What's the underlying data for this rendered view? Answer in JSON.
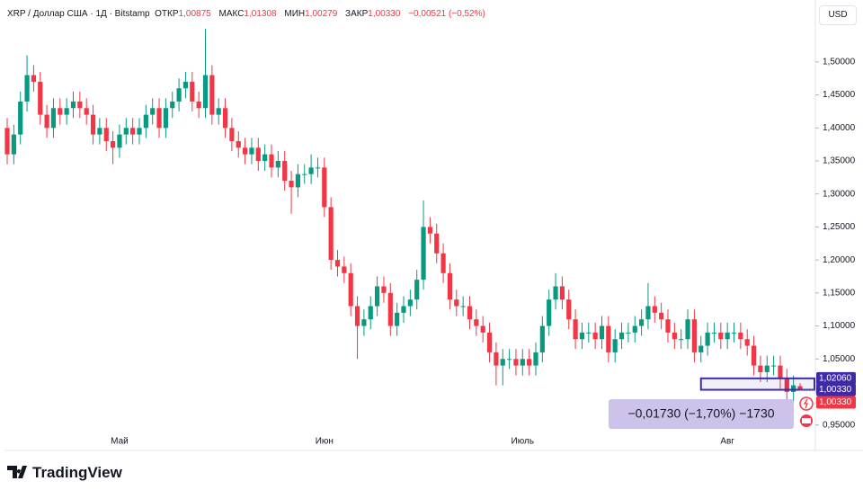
{
  "chart_data": {
    "type": "candlestick",
    "header": {
      "symbol": "XRP / Доллар США · 1Д · Bitstamp",
      "open_label": "ОТКР",
      "open": "1,00875",
      "high_label": "МАКС",
      "high": "1,01308",
      "low_label": "МИН",
      "low": "1,00279",
      "close_label": "ЗАКР",
      "close": "1,00330",
      "change": "−0,00521 (−0,52%)"
    },
    "currency": "USD",
    "brand": "TradingView",
    "up_color": "#089981",
    "down_color": "#f23645",
    "categories": [
      null,
      null,
      null,
      null,
      null,
      null,
      null,
      null,
      null,
      null,
      null,
      null,
      null,
      null,
      null,
      null,
      null,
      "Май",
      null,
      null,
      null,
      null,
      null,
      null,
      null,
      null,
      null,
      null,
      null,
      null,
      null,
      null,
      null,
      null,
      null,
      null,
      null,
      null,
      null,
      null,
      null,
      null,
      null,
      null,
      null,
      null,
      null,
      null,
      "Июн",
      null,
      null,
      null,
      null,
      null,
      null,
      null,
      null,
      null,
      null,
      null,
      null,
      null,
      null,
      null,
      null,
      null,
      null,
      null,
      null,
      null,
      null,
      null,
      null,
      null,
      null,
      null,
      null,
      null,
      "Июль",
      null,
      null,
      null,
      null,
      null,
      null,
      null,
      null,
      null,
      null,
      null,
      null,
      null,
      null,
      null,
      null,
      null,
      null,
      null,
      null,
      null,
      null,
      null,
      null,
      null,
      null,
      null,
      null,
      null,
      null,
      "Авг",
      null,
      null,
      null,
      null,
      null,
      null,
      null,
      null,
      null,
      null,
      null
    ],
    "open": [
      1.4,
      1.36,
      1.39,
      1.44,
      1.48,
      1.47,
      1.42,
      1.4,
      1.43,
      1.42,
      1.43,
      1.44,
      1.43,
      1.42,
      1.39,
      1.4,
      1.38,
      1.37,
      1.39,
      1.4,
      1.39,
      1.4,
      1.42,
      1.43,
      1.4,
      1.43,
      1.44,
      1.46,
      1.47,
      1.44,
      1.43,
      1.48,
      1.42,
      1.43,
      1.4,
      1.38,
      1.37,
      1.36,
      1.37,
      1.35,
      1.36,
      1.34,
      1.35,
      1.32,
      1.31,
      1.33,
      1.33,
      1.34,
      1.34,
      1.28,
      1.2,
      1.19,
      1.18,
      1.13,
      1.1,
      1.11,
      1.13,
      1.16,
      1.15,
      1.1,
      1.12,
      1.13,
      1.14,
      1.17,
      1.25,
      1.24,
      1.21,
      1.18,
      1.14,
      1.13,
      1.13,
      1.11,
      1.1,
      1.09,
      1.06,
      1.04,
      1.05,
      1.05,
      1.04,
      1.05,
      1.04,
      1.06,
      1.1,
      1.14,
      1.16,
      1.14,
      1.11,
      1.08,
      1.09,
      1.09,
      1.08,
      1.1,
      1.06,
      1.08,
      1.09,
      1.09,
      1.1,
      1.11,
      1.13,
      1.12,
      1.11,
      1.09,
      1.08,
      1.08,
      1.11,
      1.06,
      1.07,
      1.09,
      1.09,
      1.08,
      1.09,
      1.09,
      1.08,
      1.07,
      1.04,
      1.03,
      1.04,
      1.04,
      1.02,
      1.0,
      1.00875
    ],
    "high": [
      1.415,
      1.405,
      1.455,
      1.51,
      1.495,
      1.485,
      1.435,
      1.445,
      1.445,
      1.445,
      1.455,
      1.455,
      1.445,
      1.435,
      1.415,
      1.415,
      1.395,
      1.405,
      1.415,
      1.415,
      1.415,
      1.435,
      1.445,
      1.445,
      1.445,
      1.455,
      1.475,
      1.485,
      1.485,
      1.455,
      1.55,
      1.495,
      1.445,
      1.445,
      1.415,
      1.395,
      1.385,
      1.385,
      1.385,
      1.375,
      1.375,
      1.365,
      1.365,
      1.335,
      1.345,
      1.345,
      1.36,
      1.355,
      1.355,
      1.295,
      1.215,
      1.205,
      1.195,
      1.145,
      1.125,
      1.145,
      1.175,
      1.175,
      1.165,
      1.135,
      1.145,
      1.155,
      1.185,
      1.29,
      1.265,
      1.255,
      1.225,
      1.195,
      1.155,
      1.145,
      1.145,
      1.125,
      1.115,
      1.105,
      1.075,
      1.065,
      1.065,
      1.065,
      1.065,
      1.065,
      1.075,
      1.115,
      1.155,
      1.18,
      1.175,
      1.155,
      1.125,
      1.105,
      1.105,
      1.105,
      1.115,
      1.115,
      1.095,
      1.105,
      1.105,
      1.115,
      1.125,
      1.165,
      1.145,
      1.135,
      1.125,
      1.105,
      1.095,
      1.125,
      1.125,
      1.085,
      1.105,
      1.105,
      1.105,
      1.105,
      1.105,
      1.105,
      1.095,
      1.085,
      1.055,
      1.055,
      1.055,
      1.055,
      1.035,
      1.025,
      1.01308
    ],
    "low": [
      1.345,
      1.345,
      1.375,
      1.425,
      1.455,
      1.405,
      1.385,
      1.385,
      1.405,
      1.405,
      1.415,
      1.415,
      1.405,
      1.375,
      1.375,
      1.365,
      1.345,
      1.355,
      1.375,
      1.375,
      1.375,
      1.385,
      1.405,
      1.385,
      1.385,
      1.415,
      1.425,
      1.445,
      1.425,
      1.415,
      1.415,
      1.405,
      1.405,
      1.385,
      1.365,
      1.355,
      1.345,
      1.345,
      1.335,
      1.335,
      1.325,
      1.325,
      1.305,
      1.27,
      1.295,
      1.315,
      1.315,
      1.325,
      1.265,
      1.185,
      1.175,
      1.165,
      1.115,
      1.05,
      1.085,
      1.095,
      1.115,
      1.135,
      1.085,
      1.085,
      1.105,
      1.115,
      1.125,
      1.155,
      1.225,
      1.195,
      1.165,
      1.125,
      1.115,
      1.115,
      1.095,
      1.085,
      1.075,
      1.045,
      1.01,
      1.01,
      1.035,
      1.025,
      1.025,
      1.025,
      1.025,
      1.045,
      1.085,
      1.125,
      1.125,
      1.095,
      1.065,
      1.065,
      1.075,
      1.065,
      1.065,
      1.045,
      1.045,
      1.065,
      1.075,
      1.075,
      1.085,
      1.095,
      1.105,
      1.095,
      1.075,
      1.065,
      1.065,
      1.065,
      1.045,
      1.045,
      1.055,
      1.075,
      1.065,
      1.065,
      1.075,
      1.065,
      1.055,
      1.025,
      1.015,
      1.015,
      1.025,
      1.005,
      0.985,
      0.985,
      1.00279
    ],
    "close": [
      1.36,
      1.39,
      1.44,
      1.48,
      1.47,
      1.42,
      1.4,
      1.43,
      1.42,
      1.43,
      1.44,
      1.43,
      1.42,
      1.39,
      1.4,
      1.38,
      1.37,
      1.39,
      1.4,
      1.39,
      1.4,
      1.42,
      1.43,
      1.4,
      1.43,
      1.44,
      1.46,
      1.47,
      1.44,
      1.43,
      1.48,
      1.42,
      1.43,
      1.4,
      1.38,
      1.37,
      1.36,
      1.37,
      1.35,
      1.36,
      1.34,
      1.35,
      1.32,
      1.31,
      1.33,
      1.33,
      1.34,
      1.34,
      1.28,
      1.2,
      1.19,
      1.18,
      1.13,
      1.1,
      1.11,
      1.13,
      1.16,
      1.15,
      1.1,
      1.12,
      1.13,
      1.14,
      1.17,
      1.25,
      1.24,
      1.21,
      1.18,
      1.14,
      1.13,
      1.13,
      1.11,
      1.1,
      1.09,
      1.06,
      1.04,
      1.05,
      1.05,
      1.04,
      1.05,
      1.04,
      1.06,
      1.1,
      1.14,
      1.16,
      1.14,
      1.11,
      1.08,
      1.09,
      1.09,
      1.08,
      1.1,
      1.06,
      1.08,
      1.09,
      1.09,
      1.1,
      1.11,
      1.13,
      1.12,
      1.11,
      1.09,
      1.08,
      1.08,
      1.11,
      1.06,
      1.07,
      1.09,
      1.09,
      1.08,
      1.09,
      1.09,
      1.08,
      1.07,
      1.04,
      1.03,
      1.04,
      1.04,
      1.02,
      1.0,
      1.01,
      1.0033
    ],
    "ylim": [
      0.94,
      1.587
    ],
    "yticks": [
      {
        "value": 0.95,
        "label": "0,95000"
      },
      {
        "value": 1.0,
        "label": "1,00000"
      },
      {
        "value": 1.05,
        "label": "1,05000"
      },
      {
        "value": 1.1,
        "label": "1,10000"
      },
      {
        "value": 1.15,
        "label": "1,15000"
      },
      {
        "value": 1.2,
        "label": "1,20000"
      },
      {
        "value": 1.25,
        "label": "1,25000"
      },
      {
        "value": 1.3,
        "label": "1,30000"
      },
      {
        "value": 1.35,
        "label": "1,35000"
      },
      {
        "value": 1.4,
        "label": "1,40000"
      },
      {
        "value": 1.45,
        "label": "1,45000"
      },
      {
        "value": 1.5,
        "label": "1,50000"
      }
    ],
    "grid": false,
    "measure": {
      "from": {
        "value": 1.0206,
        "label": "1,02060"
      },
      "to": {
        "value": 1.0033,
        "label": "1,00330"
      },
      "start": 105,
      "text": "−0,01730 (−1,70%) −1730",
      "color": "#3f2aa6"
    },
    "last_price": {
      "value": 1.0033,
      "label": "1,00330"
    }
  }
}
